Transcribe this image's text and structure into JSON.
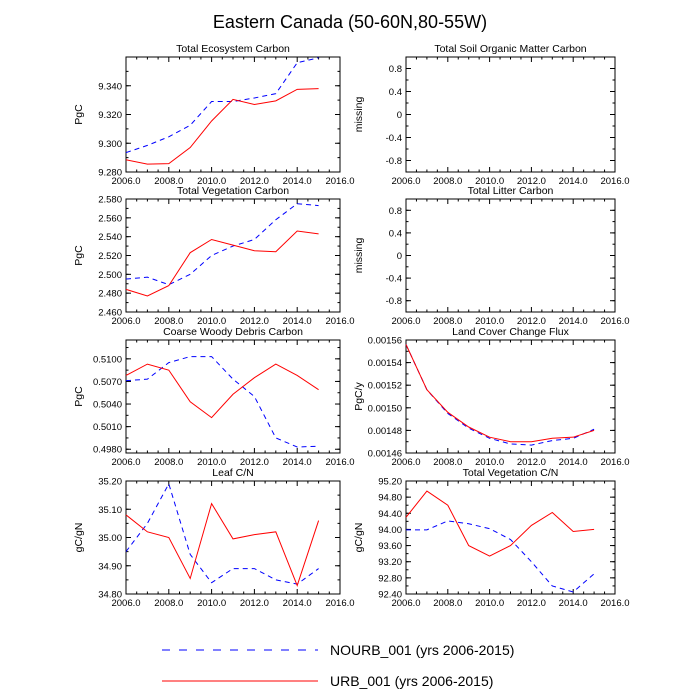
{
  "page": {
    "title": "Eastern Canada (50-60N,80-55W)"
  },
  "colors": {
    "nourb": "#0000ff",
    "urb": "#ff0000"
  },
  "legend": [
    {
      "label": "NOURB_001 (yrs 2006-2015)",
      "style": "dashed",
      "color": "#0000ff"
    },
    {
      "label": "URB_001 (yrs 2006-2015)",
      "style": "solid",
      "color": "#ff0000"
    }
  ],
  "chart_data": [
    {
      "type": "line",
      "title": "Total Ecosystem Carbon",
      "ylabel": "PgC",
      "xlim": [
        2006,
        2016
      ],
      "ylim": [
        9.28,
        9.36
      ],
      "xticks": [
        2006,
        2008,
        2010,
        2012,
        2014,
        2016
      ],
      "xtick_labels": [
        "2006.0",
        "2008.0",
        "2010.0",
        "2012.0",
        "2014.0",
        "2016.0"
      ],
      "yticks": [
        9.28,
        9.3,
        9.32,
        9.34
      ],
      "ytick_labels": [
        "9.280",
        "9.300",
        "9.320",
        "9.340"
      ],
      "x": [
        2006,
        2007,
        2008,
        2009,
        2010,
        2011,
        2012,
        2013,
        2014,
        2015
      ],
      "series": [
        {
          "name": "NOURB_001",
          "values": [
            9.2935,
            9.2985,
            9.3045,
            9.3125,
            9.329,
            9.329,
            9.3315,
            9.3345,
            9.356,
            9.3595
          ]
        },
        {
          "name": "URB_001",
          "values": [
            9.2885,
            9.2855,
            9.2858,
            9.297,
            9.3155,
            9.3305,
            9.327,
            9.3295,
            9.3375,
            9.338
          ]
        }
      ]
    },
    {
      "type": "line",
      "title": "Total Soil Organic Matter Carbon",
      "ylabel": "missing",
      "xlim": [
        2006,
        2016
      ],
      "ylim": [
        -1,
        1
      ],
      "xticks": [
        2006,
        2008,
        2010,
        2012,
        2014,
        2016
      ],
      "xtick_labels": [
        "2006.0",
        "2008.0",
        "2010.0",
        "2012.0",
        "2014.0",
        "2016.0"
      ],
      "yticks": [
        -0.8,
        -0.4,
        0,
        0.4,
        0.8
      ],
      "ytick_labels": [
        "-0.8",
        "-0.4",
        "0",
        "0.4",
        "0.8"
      ],
      "x": [],
      "series": []
    },
    {
      "type": "line",
      "title": "Total Vegetation Carbon",
      "ylabel": "PgC",
      "xlim": [
        2006,
        2016
      ],
      "ylim": [
        2.46,
        2.58
      ],
      "xticks": [
        2006,
        2008,
        2010,
        2012,
        2014,
        2016
      ],
      "xtick_labels": [
        "2006.0",
        "2008.0",
        "2010.0",
        "2012.0",
        "2014.0",
        "2016.0"
      ],
      "yticks": [
        2.46,
        2.48,
        2.5,
        2.52,
        2.54,
        2.56,
        2.58
      ],
      "ytick_labels": [
        "2.460",
        "2.480",
        "2.500",
        "2.520",
        "2.540",
        "2.560",
        "2.580"
      ],
      "x": [
        2006,
        2007,
        2008,
        2009,
        2010,
        2011,
        2012,
        2013,
        2014,
        2015
      ],
      "series": [
        {
          "name": "NOURB_001",
          "values": [
            2.495,
            2.497,
            2.489,
            2.5,
            2.52,
            2.53,
            2.537,
            2.558,
            2.575,
            2.573
          ]
        },
        {
          "name": "URB_001",
          "values": [
            2.484,
            2.477,
            2.488,
            2.523,
            2.537,
            2.531,
            2.525,
            2.524,
            2.546,
            2.543
          ]
        }
      ]
    },
    {
      "type": "line",
      "title": "Total Litter Carbon",
      "ylabel": "missing",
      "xlim": [
        2006,
        2016
      ],
      "ylim": [
        -1,
        1
      ],
      "xticks": [
        2006,
        2008,
        2010,
        2012,
        2014,
        2016
      ],
      "xtick_labels": [
        "2006.0",
        "2008.0",
        "2010.0",
        "2012.0",
        "2014.0",
        "2016.0"
      ],
      "yticks": [
        -0.8,
        -0.4,
        0,
        0.4,
        0.8
      ],
      "ytick_labels": [
        "-0.8",
        "-0.4",
        "0",
        "0.4",
        "0.8"
      ],
      "x": [],
      "series": []
    },
    {
      "type": "line",
      "title": "Coarse Woody Debris Carbon",
      "ylabel": "PgC",
      "xlim": [
        2006,
        2016
      ],
      "ylim": [
        0.4975,
        0.5125
      ],
      "xticks": [
        2006,
        2008,
        2010,
        2012,
        2014,
        2016
      ],
      "xtick_labels": [
        "2006.0",
        "2008.0",
        "2010.0",
        "2012.0",
        "2014.0",
        "2016.0"
      ],
      "yticks": [
        0.498,
        0.501,
        0.504,
        0.507,
        0.51
      ],
      "ytick_labels": [
        "0.4980",
        "0.5010",
        "0.5040",
        "0.5070",
        "0.5100"
      ],
      "x": [
        2006,
        2007,
        2008,
        2009,
        2010,
        2011,
        2012,
        2013,
        2014,
        2015
      ],
      "series": [
        {
          "name": "NOURB_001",
          "values": [
            0.5071,
            0.5073,
            0.5095,
            0.5103,
            0.5103,
            0.5073,
            0.505,
            0.4995,
            0.4983,
            0.4984
          ]
        },
        {
          "name": "URB_001",
          "values": [
            0.5078,
            0.5093,
            0.5085,
            0.5043,
            0.5022,
            0.5053,
            0.5075,
            0.5093,
            0.5078,
            0.5059
          ]
        }
      ]
    },
    {
      "type": "line",
      "title": "Land Cover Change Flux",
      "ylabel": "PgC/y",
      "xlim": [
        2006,
        2016
      ],
      "ylim": [
        0.00146,
        0.00156
      ],
      "xticks": [
        2006,
        2008,
        2010,
        2012,
        2014,
        2016
      ],
      "xtick_labels": [
        "2006.0",
        "2008.0",
        "2010.0",
        "2012.0",
        "2014.0",
        "2016.0"
      ],
      "yticks": [
        0.00146,
        0.00148,
        0.0015,
        0.00152,
        0.00154,
        0.00156
      ],
      "ytick_labels": [
        "0.00146",
        "0.00148",
        "0.00150",
        "0.00152",
        "0.00154",
        "0.00156"
      ],
      "x": [
        2006,
        2007,
        2008,
        2009,
        2010,
        2011,
        2012,
        2013,
        2014,
        2015
      ],
      "series": [
        {
          "name": "NOURB_001",
          "values": [
            0.001556,
            0.001516,
            0.001495,
            0.001482,
            0.001473,
            0.001468,
            0.001467,
            0.001471,
            0.001473,
            0.001481
          ]
        },
        {
          "name": "URB_001",
          "values": [
            0.001556,
            0.001516,
            0.001496,
            0.001483,
            0.001474,
            0.00147,
            0.00147,
            0.001473,
            0.001474,
            0.00148
          ]
        }
      ]
    },
    {
      "type": "line",
      "title": "Leaf C/N",
      "ylabel": "gC/gN",
      "xlim": [
        2006,
        2016
      ],
      "ylim": [
        34.8,
        35.2
      ],
      "xticks": [
        2006,
        2008,
        2010,
        2012,
        2014,
        2016
      ],
      "xtick_labels": [
        "2006.0",
        "2008.0",
        "2010.0",
        "2012.0",
        "2014.0",
        "2016.0"
      ],
      "yticks": [
        34.8,
        34.9,
        35.0,
        35.1,
        35.2
      ],
      "ytick_labels": [
        "34.80",
        "34.90",
        "35.00",
        "35.10",
        "35.20"
      ],
      "x": [
        2006,
        2007,
        2008,
        2009,
        2010,
        2011,
        2012,
        2013,
        2014,
        2015
      ],
      "series": [
        {
          "name": "NOURB_001",
          "values": [
            34.95,
            35.05,
            35.19,
            34.94,
            34.84,
            34.89,
            34.89,
            34.85,
            34.835,
            34.89
          ]
        },
        {
          "name": "URB_001",
          "values": [
            35.08,
            35.02,
            35.0,
            34.855,
            35.12,
            34.995,
            35.01,
            35.02,
            34.83,
            35.06
          ]
        }
      ]
    },
    {
      "type": "line",
      "title": "Total Vegetation C/N",
      "ylabel": "gC/gN",
      "xlim": [
        2006,
        2016
      ],
      "ylim": [
        92.4,
        95.2
      ],
      "xticks": [
        2006,
        2008,
        2010,
        2012,
        2014,
        2016
      ],
      "xtick_labels": [
        "2006.0",
        "2008.0",
        "2010.0",
        "2012.0",
        "2014.0",
        "2016.0"
      ],
      "yticks": [
        92.4,
        92.8,
        93.2,
        93.6,
        94.0,
        94.4,
        94.8,
        95.2
      ],
      "ytick_labels": [
        "92.40",
        "92.80",
        "93.20",
        "93.60",
        "94.00",
        "94.40",
        "94.80",
        "95.20"
      ],
      "x": [
        2006,
        2007,
        2008,
        2009,
        2010,
        2011,
        2012,
        2013,
        2014,
        2015
      ],
      "series": [
        {
          "name": "NOURB_001",
          "values": [
            93.99,
            93.99,
            94.21,
            94.14,
            94.02,
            93.75,
            93.2,
            92.6,
            92.45,
            92.9
          ]
        },
        {
          "name": "URB_001",
          "values": [
            94.3,
            94.95,
            94.6,
            93.6,
            93.34,
            93.6,
            94.1,
            94.42,
            93.95,
            94.0
          ]
        }
      ]
    }
  ]
}
